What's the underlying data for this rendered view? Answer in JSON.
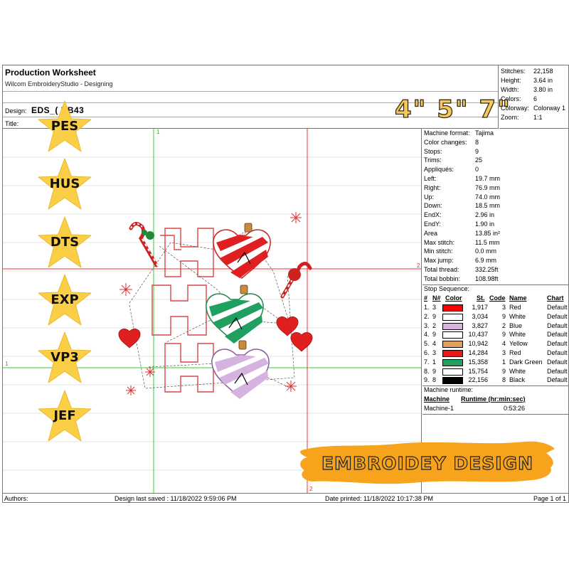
{
  "header": {
    "title": "Production Worksheet",
    "subtitle": "Wilcom EmbroideryStudio - Designing",
    "design_label": "Design:",
    "design_value": "EDS_(    BB43",
    "title_label": "Title:",
    "stats": [
      {
        "k": "Stitches:",
        "v": "22,158"
      },
      {
        "k": "Height:",
        "v": "3.64 in"
      },
      {
        "k": "Width:",
        "v": "3.80 in"
      },
      {
        "k": "Colors:",
        "v": "6"
      },
      {
        "k": "Colorway:",
        "v": "Colorway 1"
      },
      {
        "k": "Zoom:",
        "v": "1:1"
      }
    ],
    "sizes_overlay": "4\"  5\"  7\""
  },
  "machine": [
    {
      "k": "Machine format:",
      "v": "Tajima"
    },
    {
      "k": "Color changes:",
      "v": "8"
    },
    {
      "k": "Stops:",
      "v": "9"
    },
    {
      "k": "Trims:",
      "v": "25"
    },
    {
      "k": "Appliqués:",
      "v": "0"
    },
    {
      "k": "Left:",
      "v": "19.7 mm"
    },
    {
      "k": "Right:",
      "v": "76.9 mm"
    },
    {
      "k": "Up:",
      "v": "74.0 mm"
    },
    {
      "k": "Down:",
      "v": "18.5 mm"
    },
    {
      "k": "EndX:",
      "v": "2.96 in"
    },
    {
      "k": "EndY:",
      "v": "1.90 in"
    },
    {
      "k": "Area",
      "v": " 13.85 in²"
    },
    {
      "k": "Max stitch:",
      "v": "11.5 mm"
    },
    {
      "k": "Min stitch:",
      "v": "0.0 mm"
    },
    {
      "k": "Max jump:",
      "v": "6.9 mm"
    },
    {
      "k": "Total thread:",
      "v": "332.25ft"
    },
    {
      "k": "Total bobbin:",
      "v": "108.98ft"
    }
  ],
  "stop_sequence": {
    "title": "Stop Sequence:",
    "headers": {
      "num": "#",
      "n": "N#",
      "color": "Color",
      "st": "St.",
      "code": "Code",
      "name": "Name",
      "chart": "Chart"
    },
    "rows": [
      {
        "num": "1.",
        "n": "3",
        "color": "#ff0000",
        "st": "1,917",
        "code": "3",
        "name": "Red",
        "chart": "Default"
      },
      {
        "num": "2.",
        "n": "9",
        "color": "#ffffff",
        "st": "3,034",
        "code": "9",
        "name": "White",
        "chart": "Default"
      },
      {
        "num": "3.",
        "n": "2",
        "color": "#d9b3e0",
        "st": "3,827",
        "code": "2",
        "name": "Blue",
        "chart": "Default"
      },
      {
        "num": "4.",
        "n": "9",
        "color": "#ffffff",
        "st": "10,437",
        "code": "9",
        "name": "White",
        "chart": "Default"
      },
      {
        "num": "5.",
        "n": "4",
        "color": "#e0a060",
        "st": "10,942",
        "code": "4",
        "name": "Yellow",
        "chart": "Default"
      },
      {
        "num": "6.",
        "n": "3",
        "color": "#e81818",
        "st": "14,284",
        "code": "3",
        "name": "Red",
        "chart": "Default"
      },
      {
        "num": "7.",
        "n": "1",
        "color": "#22a060",
        "st": "15,358",
        "code": "1",
        "name": "Dark Green",
        "chart": "Default"
      },
      {
        "num": "8.",
        "n": "9",
        "color": "#ffffff",
        "st": "15,754",
        "code": "9",
        "name": "White",
        "chart": "Default"
      },
      {
        "num": "9.",
        "n": "8",
        "color": "#000000",
        "st": "22,156",
        "code": "8",
        "name": "Black",
        "chart": "Default"
      }
    ]
  },
  "runtime": {
    "title": "Machine runtime:",
    "col_machine": "Machine",
    "col_runtime": "Runtime (hr:min:sec)",
    "machine": "Machine-1",
    "time": "0:53:26"
  },
  "guides": {
    "top_1": "1",
    "right_2": "2",
    "left_1": "1",
    "bottom_2": "2"
  },
  "formats": [
    "PES",
    "HUS",
    "DTS",
    "EXP",
    "VP3",
    "JEF"
  ],
  "banner_text": "EMBROIDEY DESIGN",
  "footer": {
    "authors": "Authors:",
    "saved": "Design last saved : 11/18/2022 9:59:06 PM",
    "printed": "Date printed: 11/18/2022 10:17:38 PM",
    "page": "Page 1 of 1"
  },
  "colors": {
    "star": "#fbcf45",
    "banner": "#f7a31c",
    "guide_green": "#33cc33",
    "guide_red": "#ee3333"
  }
}
